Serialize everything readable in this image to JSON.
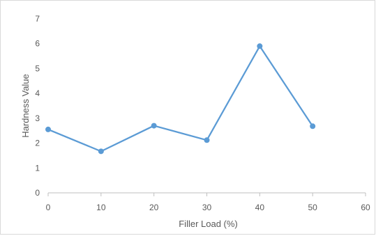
{
  "chart_data": {
    "type": "line",
    "title": "",
    "xlabel": "Filler Load (%)",
    "ylabel": "Hardness Value",
    "xlim": [
      0,
      60
    ],
    "ylim": [
      0,
      7
    ],
    "x_ticks": [
      0,
      10,
      20,
      30,
      40,
      50,
      60
    ],
    "y_ticks": [
      0,
      1,
      2,
      3,
      4,
      5,
      6,
      7
    ],
    "grid": false,
    "legend": "none",
    "series": [
      {
        "x": [
          0,
          10,
          20,
          30,
          40,
          50
        ],
        "values": [
          2.55,
          1.67,
          2.7,
          2.12,
          5.9,
          2.68
        ],
        "color": "#5b9bd5",
        "marker": "circle"
      }
    ]
  }
}
